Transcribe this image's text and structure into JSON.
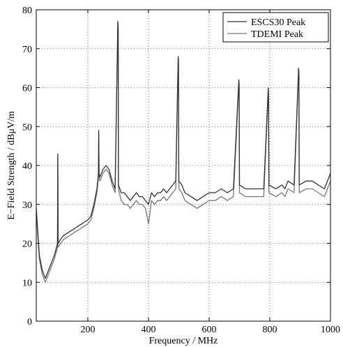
{
  "chart_data": {
    "type": "line",
    "xlabel": "Frequency / MHz",
    "ylabel": "E−Field Strength / dBμV/m",
    "xlim": [
      30,
      1000
    ],
    "ylim": [
      0,
      80
    ],
    "xticks": [
      200,
      400,
      600,
      800,
      1000
    ],
    "yticks": [
      0,
      10,
      20,
      30,
      40,
      50,
      60,
      70,
      80
    ],
    "grid": true,
    "legend": "top-right",
    "series": [
      {
        "name": "ESCS30 Peak",
        "color": "#333333",
        "x": [
          30,
          40,
          50,
          60,
          70,
          80,
          90,
          100,
          101,
          102,
          110,
          120,
          140,
          160,
          180,
          200,
          210,
          220,
          230,
          235,
          236,
          237,
          240,
          250,
          260,
          270,
          280,
          290,
          299,
          300,
          301,
          310,
          320,
          330,
          340,
          350,
          360,
          370,
          380,
          390,
          400,
          410,
          420,
          430,
          440,
          450,
          460,
          470,
          480,
          490,
          498,
          499,
          500,
          510,
          520,
          540,
          560,
          580,
          600,
          620,
          640,
          660,
          680,
          698,
          699,
          700,
          720,
          740,
          760,
          780,
          795,
          796,
          797,
          820,
          840,
          850,
          860,
          880,
          895,
          896,
          897,
          920,
          940,
          960,
          980,
          1000
        ],
        "y": [
          29,
          17,
          13,
          11,
          13,
          15,
          17,
          20,
          43,
          20,
          21,
          22,
          23,
          24,
          25,
          26,
          27,
          30,
          34,
          38,
          49,
          38,
          37,
          39,
          40,
          39,
          36,
          34,
          77,
          76,
          35,
          33,
          33,
          32,
          31,
          32,
          33,
          32,
          32,
          31,
          30,
          33,
          32,
          33,
          33,
          34,
          33,
          34,
          35,
          36,
          68,
          67,
          36,
          35,
          33,
          32,
          31,
          32,
          33,
          33,
          34,
          33,
          34,
          62,
          61,
          35,
          34,
          34,
          34,
          34,
          60,
          58,
          35,
          34,
          35,
          34,
          36,
          35,
          65,
          64,
          35,
          36,
          36,
          35,
          34,
          38
        ]
      },
      {
        "name": "TDEMI Peak",
        "color": "#777777",
        "x": [
          30,
          40,
          50,
          60,
          70,
          80,
          90,
          100,
          101,
          102,
          110,
          120,
          140,
          160,
          180,
          200,
          210,
          220,
          230,
          235,
          236,
          237,
          240,
          250,
          260,
          270,
          280,
          290,
          299,
          300,
          301,
          310,
          320,
          330,
          340,
          350,
          360,
          370,
          380,
          390,
          400,
          410,
          420,
          430,
          440,
          450,
          460,
          470,
          480,
          490,
          498,
          499,
          500,
          510,
          520,
          540,
          560,
          580,
          600,
          620,
          640,
          660,
          680,
          698,
          699,
          700,
          720,
          740,
          760,
          780,
          795,
          796,
          797,
          820,
          840,
          850,
          860,
          880,
          895,
          896,
          897,
          920,
          940,
          960,
          980,
          1000
        ],
        "y": [
          28,
          16,
          12,
          10,
          12,
          14,
          16,
          19,
          42,
          19,
          20,
          21,
          22,
          23,
          24,
          25,
          26,
          29,
          33,
          37,
          48,
          37,
          36,
          38,
          39,
          38,
          35,
          33,
          76,
          75,
          34,
          31,
          30,
          30,
          29,
          30,
          31,
          30,
          30,
          29,
          25,
          31,
          30,
          31,
          31,
          32,
          31,
          32,
          33,
          34,
          67,
          66,
          34,
          33,
          31,
          30,
          29,
          30,
          31,
          31,
          32,
          31,
          32,
          61,
          60,
          33,
          32,
          32,
          32,
          32,
          59,
          57,
          33,
          32,
          33,
          32,
          34,
          33,
          64,
          63,
          33,
          34,
          34,
          33,
          32,
          36
        ]
      }
    ]
  }
}
